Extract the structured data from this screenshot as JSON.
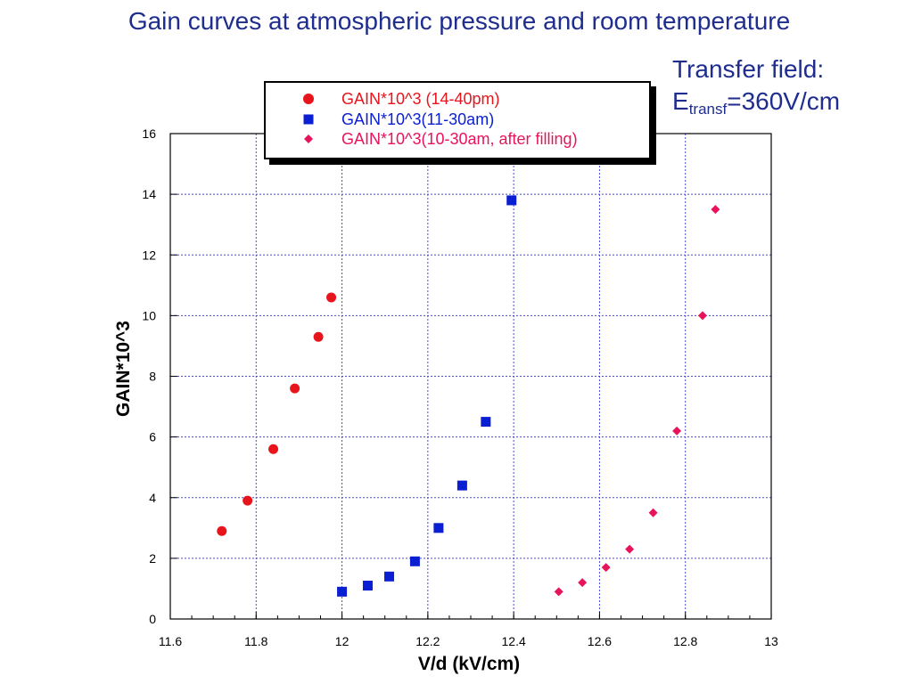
{
  "slide": {
    "title": "Gain curves at atmospheric pressure and room temperature",
    "note_line1": "Transfer field:",
    "note_symbol": "E",
    "note_subscript": "transf",
    "note_value": "=360V/cm"
  },
  "colors": {
    "title_text": "#1f2d8f",
    "series_red": "#e8141c",
    "series_blue": "#0a1ed2",
    "series_pink": "#e8145a",
    "grid": "#4a4ad8"
  },
  "chart_data": {
    "type": "scatter",
    "xlabel": "V/d (kV/cm)",
    "ylabel": "GAIN*10^3",
    "xlim": [
      11.6,
      13
    ],
    "ylim": [
      0,
      16
    ],
    "x_ticks": [
      "11.6",
      "11.8",
      "12",
      "12.2",
      "12.4",
      "12.6",
      "12.8",
      "13"
    ],
    "y_ticks": [
      "0",
      "2",
      "4",
      "6",
      "8",
      "10",
      "12",
      "14",
      "16"
    ],
    "grid": true,
    "legend_position": "top",
    "series": [
      {
        "name": "GAIN*10^3 (14-40pm)",
        "marker": "circle",
        "color": "#e8141c",
        "x": [
          11.72,
          11.78,
          11.84,
          11.89,
          11.945,
          11.975
        ],
        "y": [
          2.9,
          3.9,
          5.6,
          7.6,
          9.3,
          10.6
        ]
      },
      {
        "name": "GAIN*10^3(11-30am)",
        "marker": "square",
        "color": "#0a1ed2",
        "x": [
          12.0,
          12.06,
          12.11,
          12.17,
          12.225,
          12.28,
          12.335,
          12.395
        ],
        "y": [
          0.9,
          1.1,
          1.4,
          1.9,
          3.0,
          4.4,
          6.5,
          13.8
        ]
      },
      {
        "name": "GAIN*10^3(10-30am, after filling)",
        "marker": "diamond",
        "color": "#e8145a",
        "x": [
          12.505,
          12.56,
          12.615,
          12.67,
          12.725,
          12.78,
          12.84,
          12.87
        ],
        "y": [
          0.9,
          1.2,
          1.7,
          2.3,
          3.5,
          6.2,
          10.0,
          13.5
        ]
      }
    ]
  }
}
